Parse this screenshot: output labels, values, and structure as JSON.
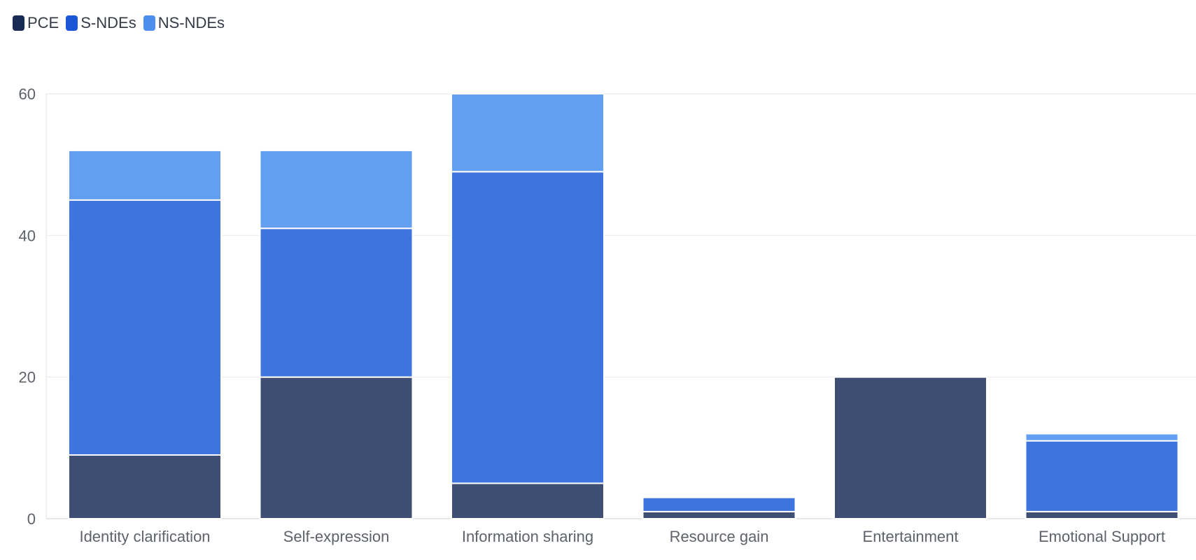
{
  "chart_data": {
    "type": "bar",
    "stacked": true,
    "categories": [
      "Identity clarification",
      "Self-expression",
      "Information sharing",
      "Resource gain",
      "Entertainment",
      "Emotional Support"
    ],
    "series": [
      {
        "name": "PCE",
        "color": "#3f4f74",
        "legend_color": "#172b54",
        "values": [
          9,
          20,
          5,
          1,
          20,
          1
        ]
      },
      {
        "name": "S-NDEs",
        "color": "#3e74de",
        "legend_color": "#1b56d6",
        "values": [
          36,
          21,
          44,
          2,
          0,
          10
        ]
      },
      {
        "name": "NS-NDEs",
        "color": "#629ff0",
        "legend_color": "#4d8fec",
        "values": [
          7,
          11,
          11,
          0,
          0,
          1
        ]
      }
    ],
    "ylim": [
      0,
      60
    ],
    "yticks": [
      0,
      20,
      40,
      60
    ],
    "grid": true,
    "legend_position": "top-left",
    "title": "",
    "xlabel": "",
    "ylabel": ""
  }
}
